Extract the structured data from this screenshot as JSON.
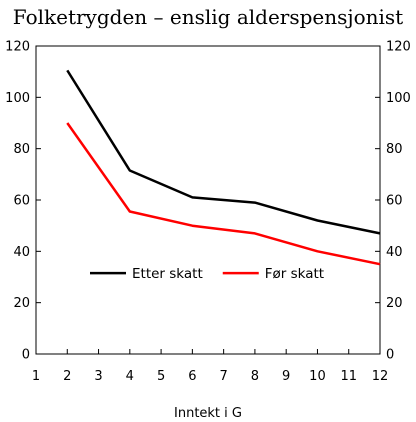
{
  "chart_data": {
    "type": "line",
    "title": "Folketrygden – enslig alderspensjonist",
    "xlabel": "Inntekt i G",
    "ylabel": "",
    "xlim": [
      1,
      12
    ],
    "ylim": [
      0,
      120
    ],
    "x_ticks": [
      1,
      2,
      3,
      4,
      5,
      6,
      7,
      8,
      9,
      10,
      11,
      12
    ],
    "y_ticks": [
      0,
      20,
      40,
      60,
      80,
      100,
      120
    ],
    "right_axis_mirrors_left": true,
    "grid": false,
    "legend_position": "center-left",
    "series": [
      {
        "name": "Etter skatt",
        "color": "#000000",
        "x": [
          2,
          4,
          6,
          8,
          10,
          12
        ],
        "values": [
          110.5,
          71.5,
          61,
          59,
          52,
          47
        ]
      },
      {
        "name": "Før skatt",
        "color": "#ff0000",
        "x": [
          2,
          4,
          6,
          8,
          10,
          12
        ],
        "values": [
          90,
          55.5,
          50,
          47,
          40,
          35
        ]
      }
    ]
  }
}
